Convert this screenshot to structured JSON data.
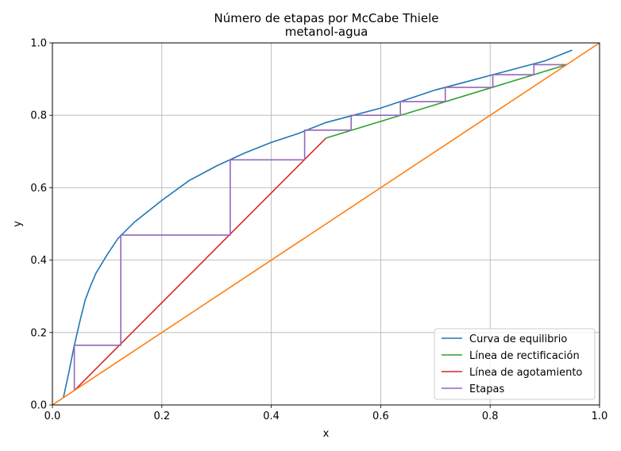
{
  "chart_data": {
    "type": "line",
    "title": "Número de etapas por McCabe Thiele",
    "subtitle": "metanol-agua",
    "xlabel": "x",
    "ylabel": "y",
    "xlim": [
      0,
      1
    ],
    "ylim": [
      0,
      1
    ],
    "xticks": [
      "0.0",
      "0.2",
      "0.4",
      "0.6",
      "0.8",
      "1.0"
    ],
    "yticks": [
      "0.0",
      "0.2",
      "0.4",
      "0.6",
      "0.8",
      "1.0"
    ],
    "grid": true,
    "legend_position": "lower-right",
    "series": [
      {
        "name": "Curva de equilibrio",
        "color": "#1f77b4",
        "points": [
          [
            0.02,
            0.02
          ],
          [
            0.03,
            0.09
          ],
          [
            0.04,
            0.165
          ],
          [
            0.05,
            0.23
          ],
          [
            0.06,
            0.29
          ],
          [
            0.07,
            0.33
          ],
          [
            0.08,
            0.365
          ],
          [
            0.1,
            0.415
          ],
          [
            0.12,
            0.46
          ],
          [
            0.15,
            0.505
          ],
          [
            0.2,
            0.565
          ],
          [
            0.25,
            0.62
          ],
          [
            0.3,
            0.66
          ],
          [
            0.35,
            0.695
          ],
          [
            0.4,
            0.725
          ],
          [
            0.45,
            0.75
          ],
          [
            0.5,
            0.78
          ],
          [
            0.55,
            0.8
          ],
          [
            0.6,
            0.82
          ],
          [
            0.65,
            0.845
          ],
          [
            0.7,
            0.87
          ],
          [
            0.75,
            0.89
          ],
          [
            0.8,
            0.91
          ],
          [
            0.85,
            0.93
          ],
          [
            0.9,
            0.95
          ],
          [
            0.95,
            0.98
          ]
        ]
      },
      {
        "name": "Línea de rectificación",
        "color": "#2ca02c",
        "points": [
          [
            0.5,
            0.737
          ],
          [
            0.94,
            0.94
          ]
        ]
      },
      {
        "name": "Línea de agotamiento",
        "color": "#d62728",
        "points": [
          [
            0.04,
            0.04
          ],
          [
            0.5,
            0.737
          ]
        ]
      },
      {
        "name": "Etapas",
        "color": "#9467bd",
        "points": [
          [
            0.94,
            0.94
          ],
          [
            0.88,
            0.94
          ],
          [
            0.88,
            0.912
          ],
          [
            0.805,
            0.912
          ],
          [
            0.805,
            0.877
          ],
          [
            0.718,
            0.877
          ],
          [
            0.718,
            0.838
          ],
          [
            0.636,
            0.838
          ],
          [
            0.636,
            0.8
          ],
          [
            0.546,
            0.8
          ],
          [
            0.546,
            0.759
          ],
          [
            0.461,
            0.759
          ],
          [
            0.461,
            0.677
          ],
          [
            0.325,
            0.677
          ],
          [
            0.325,
            0.469
          ],
          [
            0.125,
            0.469
          ],
          [
            0.125,
            0.165
          ],
          [
            0.04,
            0.165
          ],
          [
            0.04,
            0.04
          ]
        ]
      },
      {
        "name": "",
        "color": "#ff7f0e",
        "points": [
          [
            0,
            0
          ],
          [
            1,
            1
          ]
        ]
      }
    ]
  }
}
